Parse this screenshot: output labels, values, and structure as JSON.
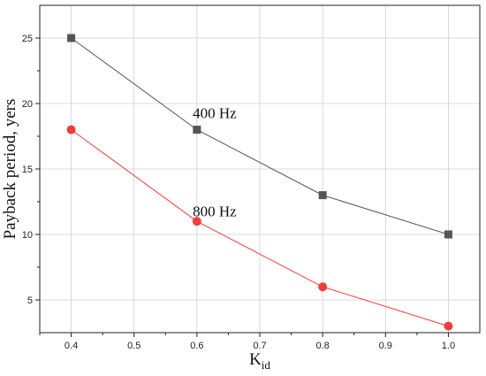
{
  "chart_data": {
    "type": "line",
    "xlabel": "K",
    "xlabel_sub": "id",
    "ylabel": "Payback period, yers",
    "xlim": [
      0.35,
      1.05
    ],
    "ylim": [
      2.5,
      27.5
    ],
    "xticks": [
      0.4,
      0.5,
      0.6,
      0.7,
      0.8,
      0.9,
      1.0
    ],
    "xtick_labels": [
      "0.4",
      "0.5",
      "0.6",
      "0.7",
      "0.8",
      "0.9",
      "1.0"
    ],
    "yticks": [
      5,
      10,
      15,
      20,
      25
    ],
    "ytick_labels": [
      "5",
      "10",
      "15",
      "20",
      "25"
    ],
    "grid": true,
    "series": [
      {
        "name": "400 Hz",
        "color": "#555555",
        "marker": "square",
        "x": [
          0.4,
          0.6,
          0.8,
          1.0
        ],
        "y": [
          25,
          18,
          13,
          10
        ],
        "label_anchor": [
          0.6,
          19.3
        ]
      },
      {
        "name": "800 Hz",
        "color": "#f03c3c",
        "marker": "circle",
        "x": [
          0.4,
          0.6,
          0.8,
          1.0
        ],
        "y": [
          18,
          11,
          6,
          3
        ],
        "label_anchor": [
          0.6,
          11.8
        ]
      }
    ]
  }
}
